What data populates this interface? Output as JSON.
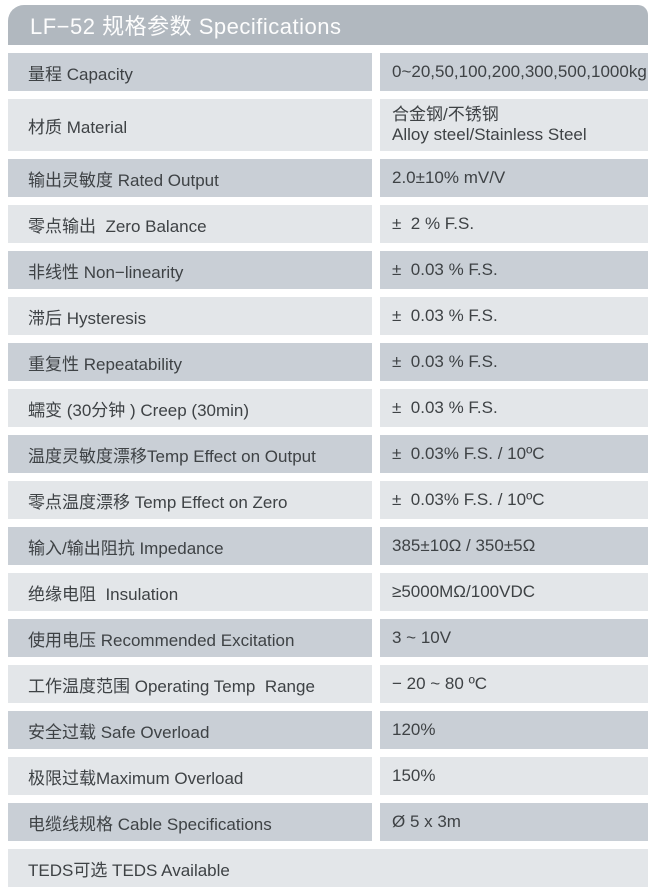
{
  "header": {
    "title": "LF−52 规格参数 Specifications"
  },
  "table": {
    "rows": [
      {
        "label": "量程 Capacity",
        "value": "0~20,50,100,200,300,500,1000kg"
      },
      {
        "label": "材质 Material",
        "value": "合金钢/不锈钢\nAlloy steel/Stainless Steel"
      },
      {
        "label": "输出灵敏度 Rated Output",
        "value": "2.0±10% mV/V"
      },
      {
        "label": "零点输出  Zero Balance",
        "value": "±  2 % F.S."
      },
      {
        "label": "非线性 Non−linearity",
        "value": "±  0.03 % F.S."
      },
      {
        "label": "滞后 Hysteresis",
        "value": "±  0.03 % F.S."
      },
      {
        "label": "重复性 Repeatability",
        "value": "±  0.03 % F.S."
      },
      {
        "label": "蠕变 (30分钟 ) Creep (30min)",
        "value": "±  0.03 % F.S."
      },
      {
        "label": "温度灵敏度漂移Temp Effect on Output",
        "value": "±  0.03% F.S. / 10ºC"
      },
      {
        "label": "零点温度漂移 Temp Effect on Zero",
        "value": "±  0.03% F.S. / 10ºC"
      },
      {
        "label": "输入/输出阻抗 Impedance",
        "value": "385±10Ω / 350±5Ω"
      },
      {
        "label": "绝缘电阻  Insulation",
        "value": "≥5000MΩ/100VDC"
      },
      {
        "label": "使用电压 Recommended Excitation",
        "value": "3 ~ 10V"
      },
      {
        "label": "工作温度范围 Operating Temp  Range",
        "value": "− 20 ~ 80 ºC"
      },
      {
        "label": "安全过载 Safe Overload",
        "value": "120%"
      },
      {
        "label": "极限过载Maximum Overload",
        "value": "150%"
      },
      {
        "label": "电缆线规格 Cable Specifications",
        "value": "Ø 5 x 3m"
      },
      {
        "label": "TEDS可选 TEDS Available",
        "value": ""
      }
    ]
  },
  "colors": {
    "header_bg": "#b1b8bf",
    "row_dark": "#c9cfd6",
    "row_light": "#e3e6e9",
    "text": "#3e4245",
    "header_text": "#fdfdfd",
    "page_bg": "#ffffff"
  }
}
